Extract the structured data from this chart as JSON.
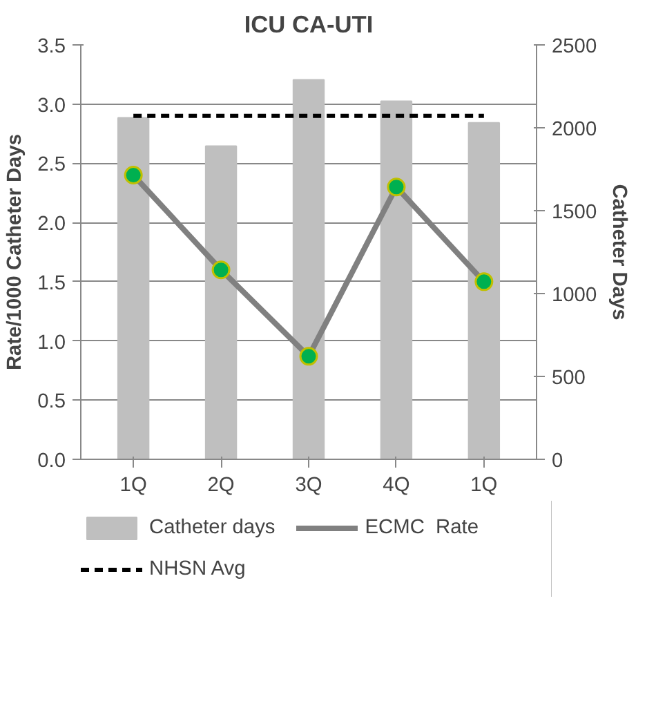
{
  "chart_data": {
    "type": "bar",
    "title": "ICU CA-UTI",
    "ylabel": "Rate/1000 Catheter Days",
    "y2label": "Catheter Days",
    "categories": [
      "1Q",
      "2Q",
      "3Q",
      "4Q",
      "1Q"
    ],
    "series": [
      {
        "name": "Catheter days",
        "axis": "y2",
        "color": "#bfbfbf",
        "values": [
          2060,
          1890,
          2290,
          2160,
          2030
        ]
      },
      {
        "name": "ECMC  Rate",
        "type": "line",
        "color": "#808080",
        "marker": "circle",
        "line_style": "solid",
        "values": [
          2.4,
          1.6,
          0.87,
          2.3,
          1.5
        ]
      },
      {
        "name": "NHSN Avg",
        "type": "line",
        "color": "#000000",
        "marker": "none",
        "line_style": "dashed",
        "values": [
          2.9,
          2.9,
          2.9,
          2.9,
          2.9
        ]
      }
    ],
    "ylim": [
      0,
      3.5
    ],
    "yticks": [
      {
        "value": 0,
        "label": "0.0"
      },
      {
        "value": 0.5,
        "label": "0.5"
      },
      {
        "value": 1,
        "label": "1.0"
      },
      {
        "value": 1.5,
        "label": "1.5"
      },
      {
        "value": 2,
        "label": "2.0"
      },
      {
        "value": 2.5,
        "label": "2.5"
      },
      {
        "value": 3,
        "label": "3.0"
      },
      {
        "value": 3.5,
        "label": "3.5"
      }
    ],
    "y2lim": [
      0,
      2500
    ],
    "y2ticks": [
      0,
      500,
      1000,
      1500,
      2000,
      2500
    ],
    "grid": "y",
    "legend": "bottom"
  }
}
